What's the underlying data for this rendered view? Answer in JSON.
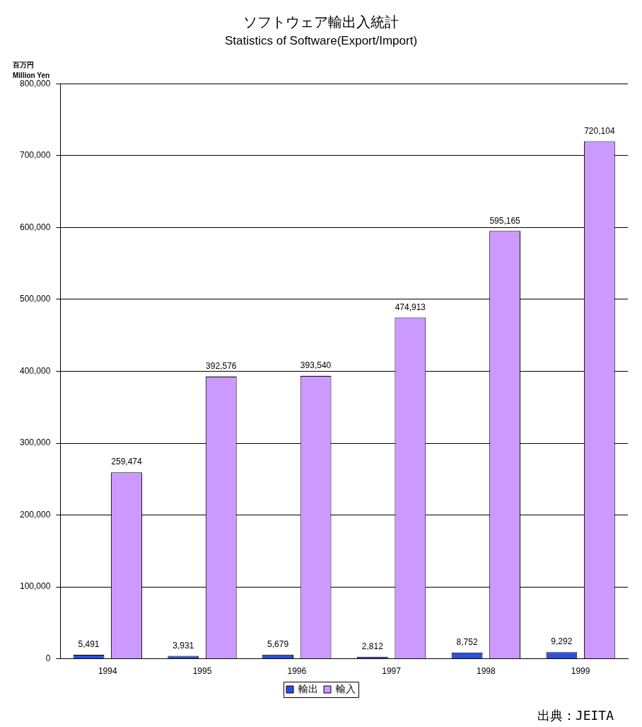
{
  "chart_data": {
    "type": "bar",
    "title": "ソフトウェア輸出入統計",
    "subtitle": "Statistics of Software(Export/Import)",
    "ylabel": "百万円\nMillion Yen",
    "categories": [
      "1994",
      "1995",
      "1996",
      "1997",
      "1998",
      "1999"
    ],
    "series": [
      {
        "name": "輸出",
        "color": "#2a4ee8",
        "values": [
          5491,
          3931,
          5679,
          2812,
          8752,
          9292
        ],
        "value_labels": [
          "5,491",
          "3,931",
          "5,679",
          "2,812",
          "8,752",
          "9,292"
        ]
      },
      {
        "name": "輸入",
        "color": "#cc99ff",
        "values": [
          259474,
          392576,
          393540,
          474913,
          595165,
          720104
        ],
        "value_labels": [
          "259,474",
          "392,576",
          "393,540",
          "474,913",
          "595,165",
          "720,104"
        ]
      }
    ],
    "ylim": [
      0,
      800000
    ],
    "yticks": [
      {
        "value": 0,
        "label": "0"
      },
      {
        "value": 100000,
        "label": "100,000"
      },
      {
        "value": 200000,
        "label": "200,000"
      },
      {
        "value": 300000,
        "label": "300,000"
      },
      {
        "value": 400000,
        "label": "400,000"
      },
      {
        "value": 500000,
        "label": "500,000"
      },
      {
        "value": 600000,
        "label": "600,000"
      },
      {
        "value": 700000,
        "label": "700,000"
      },
      {
        "value": 800000,
        "label": "800,000"
      }
    ],
    "grid": "y",
    "legend": "bottom",
    "annotations": [
      "出典：JEITA"
    ]
  }
}
